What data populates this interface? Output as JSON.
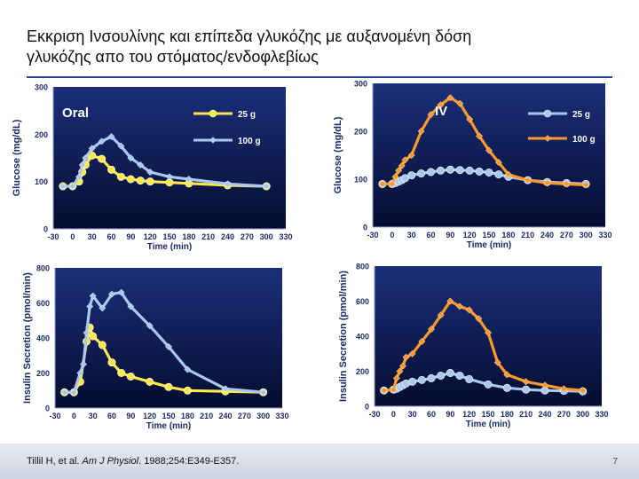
{
  "slide": {
    "title_line1": "Εκκριση Ινσουλίνης και επίπεδα γλυκόζης με αυξανομένη δόση",
    "title_line2": "γλυκόζης απο του στόματος/ενδοφλεβίως",
    "citation_authors": "Tillil H, et al. ",
    "citation_journal": "Am J Physiol",
    "citation_rest": ". 1988;254:E349-E357.",
    "page_number": "7"
  },
  "colors": {
    "panel_top": "#1c2f7a",
    "panel_bottom": "#040d30",
    "axis_text": "#1a2a66",
    "yellow": "#ffe84a",
    "light_blue": "#a8c8f0",
    "orange": "#ff9a2a"
  },
  "chart_data": [
    {
      "id": "oral-glucose",
      "type": "line",
      "panel_label": "Oral",
      "xlabel": "Time (min)",
      "ylabel": "Glucose (mg/dL)",
      "xticks": [
        "-30",
        "0",
        "30",
        "60",
        "90",
        "120",
        "150",
        "180",
        "210",
        "240",
        "270",
        "300",
        "330"
      ],
      "yticks": [
        "0",
        "100",
        "200",
        "300"
      ],
      "xlim": [
        -30,
        330
      ],
      "ylim": [
        0,
        300
      ],
      "series": [
        {
          "name": "25 g",
          "color": "yellow",
          "marker": "circle",
          "x": [
            -15,
            0,
            10,
            15,
            20,
            30,
            45,
            60,
            75,
            90,
            105,
            120,
            150,
            180,
            240,
            300
          ],
          "y": [
            90,
            90,
            100,
            120,
            135,
            155,
            148,
            125,
            110,
            105,
            102,
            100,
            98,
            96,
            92,
            90
          ]
        },
        {
          "name": "100 g",
          "color": "light_blue",
          "marker": "diamond",
          "x": [
            -15,
            0,
            10,
            15,
            20,
            30,
            45,
            60,
            75,
            90,
            105,
            120,
            150,
            180,
            240,
            300
          ],
          "y": [
            90,
            90,
            110,
            135,
            150,
            170,
            185,
            195,
            175,
            150,
            135,
            120,
            110,
            105,
            95,
            90
          ]
        }
      ]
    },
    {
      "id": "iv-glucose",
      "type": "line",
      "panel_label": "IV",
      "xlabel": "Time (min)",
      "ylabel": "Glucose (mg/dL)",
      "xticks": [
        "-30",
        "0",
        "30",
        "60",
        "90",
        "120",
        "150",
        "180",
        "210",
        "240",
        "270",
        "300",
        "330"
      ],
      "yticks": [
        "0",
        "100",
        "200",
        "300"
      ],
      "xlim": [
        -30,
        330
      ],
      "ylim": [
        0,
        300
      ],
      "series": [
        {
          "name": "25 g",
          "color": "light_blue",
          "marker": "circle",
          "x": [
            -15,
            0,
            5,
            10,
            15,
            20,
            30,
            45,
            60,
            75,
            90,
            105,
            120,
            135,
            150,
            165,
            180,
            210,
            240,
            270,
            300
          ],
          "y": [
            90,
            90,
            92,
            95,
            98,
            102,
            108,
            112,
            115,
            118,
            120,
            119,
            118,
            116,
            114,
            110,
            105,
            98,
            94,
            92,
            90
          ]
        },
        {
          "name": "100 g",
          "color": "orange",
          "marker": "diamond",
          "x": [
            -15,
            0,
            5,
            10,
            15,
            20,
            30,
            45,
            60,
            75,
            90,
            105,
            120,
            135,
            150,
            165,
            180,
            210,
            240,
            270,
            300
          ],
          "y": [
            90,
            90,
            105,
            118,
            128,
            140,
            150,
            200,
            235,
            255,
            270,
            258,
            225,
            190,
            160,
            135,
            110,
            98,
            92,
            90,
            88
          ]
        }
      ]
    },
    {
      "id": "oral-insulin",
      "type": "line",
      "xlabel": "Time (min)",
      "ylabel": "Insulin Secretion (pmol/min)",
      "xticks": [
        "-30",
        "0",
        "30",
        "60",
        "90",
        "120",
        "150",
        "180",
        "210",
        "240",
        "270",
        "300",
        "330"
      ],
      "yticks": [
        "0",
        "200",
        "400",
        "600",
        "800"
      ],
      "xlim": [
        -30,
        330
      ],
      "ylim": [
        0,
        800
      ],
      "series": [
        {
          "name": "25 g",
          "color": "yellow",
          "marker": "circle",
          "x": [
            -15,
            0,
            10,
            20,
            25,
            30,
            45,
            60,
            75,
            90,
            120,
            150,
            180,
            240,
            300
          ],
          "y": [
            90,
            90,
            150,
            380,
            460,
            410,
            360,
            260,
            200,
            180,
            150,
            120,
            100,
            95,
            90
          ]
        },
        {
          "name": "100 g",
          "color": "light_blue",
          "marker": "diamond",
          "x": [
            -15,
            0,
            10,
            15,
            20,
            25,
            30,
            45,
            60,
            75,
            90,
            120,
            150,
            180,
            240,
            300
          ],
          "y": [
            90,
            90,
            200,
            250,
            430,
            580,
            640,
            570,
            650,
            660,
            580,
            470,
            350,
            220,
            110,
            90
          ]
        }
      ]
    },
    {
      "id": "iv-insulin",
      "type": "line",
      "xlabel": "Time (min)",
      "ylabel": "Insulin Secretion (pmol/min)",
      "xticks": [
        "-30",
        "0",
        "30",
        "60",
        "90",
        "120",
        "150",
        "180",
        "210",
        "240",
        "270",
        "300",
        "330"
      ],
      "yticks": [
        "0",
        "200",
        "400",
        "600",
        "800"
      ],
      "xlim": [
        -30,
        330
      ],
      "ylim": [
        0,
        800
      ],
      "series": [
        {
          "name": "25 g",
          "color": "light_blue",
          "marker": "circle",
          "x": [
            -15,
            0,
            5,
            10,
            15,
            20,
            30,
            45,
            60,
            75,
            90,
            105,
            120,
            150,
            180,
            210,
            240,
            270,
            300
          ],
          "y": [
            90,
            95,
            100,
            110,
            120,
            130,
            140,
            150,
            160,
            175,
            190,
            175,
            155,
            125,
            105,
            95,
            90,
            88,
            85
          ]
        },
        {
          "name": "100 g",
          "color": "orange",
          "marker": "diamond",
          "x": [
            -15,
            0,
            5,
            10,
            15,
            20,
            30,
            45,
            60,
            75,
            90,
            105,
            120,
            135,
            150,
            165,
            180,
            210,
            240,
            270,
            300
          ],
          "y": [
            90,
            95,
            160,
            200,
            230,
            280,
            300,
            370,
            440,
            520,
            600,
            570,
            550,
            500,
            420,
            250,
            180,
            140,
            120,
            100,
            90
          ]
        }
      ]
    }
  ]
}
